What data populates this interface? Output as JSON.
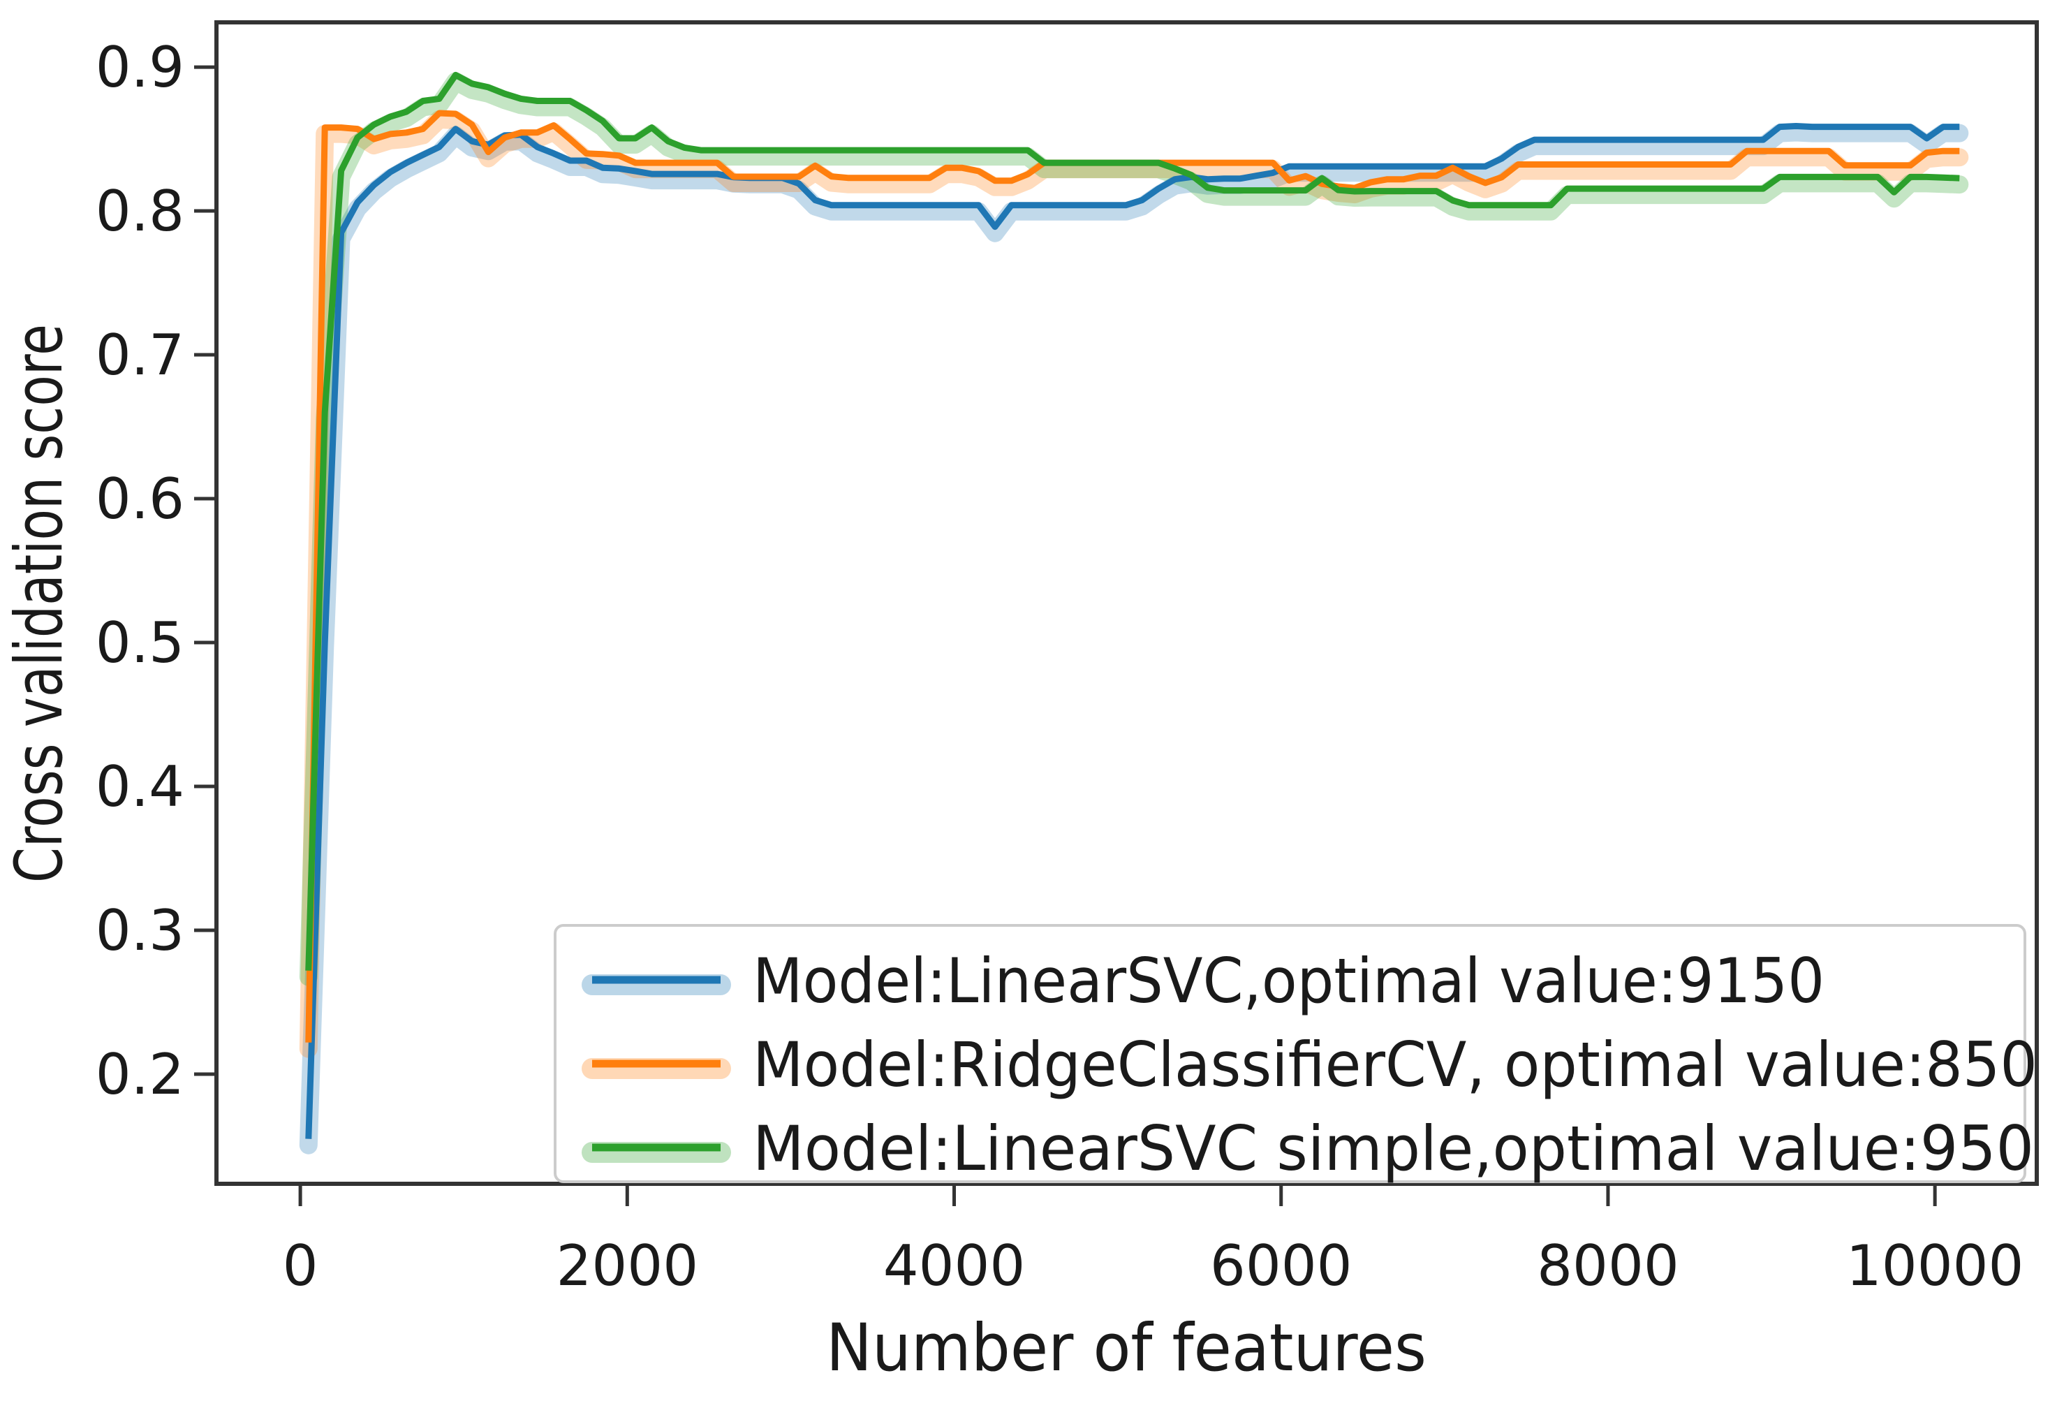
{
  "figure": {
    "background": "#ffffff"
  },
  "chart_data": {
    "type": "line",
    "title": "",
    "xlabel": "Number of features",
    "ylabel": "Cross validation score",
    "grid": false,
    "legend_position": "lower center-right, inside axes",
    "xlim": [
      -513,
      10623
    ],
    "ylim": [
      0.1238,
      0.9311
    ],
    "xticks": [
      0,
      2000,
      4000,
      6000,
      8000,
      10000
    ],
    "yticks": [
      0.2,
      0.3,
      0.4,
      0.5,
      0.6,
      0.7,
      0.8,
      0.9
    ],
    "x": {
      "start": 50,
      "step": 100,
      "end": 10150
    },
    "series": [
      {
        "name": "LinearSVC",
        "label": "Model:LinearSVC,optimal value:9150",
        "color": "#1f77b4",
        "optimal_value": 9150,
        "values": [
          0.155,
          0.5,
          0.785,
          0.806,
          0.818,
          0.827,
          0.8335,
          0.839,
          0.8445,
          0.857,
          0.8485,
          0.846,
          0.8525,
          0.853,
          0.8445,
          0.84,
          0.835,
          0.835,
          0.83,
          0.8295,
          0.8277,
          0.8257,
          0.8257,
          0.8257,
          0.8257,
          0.8257,
          0.8235,
          0.823,
          0.823,
          0.823,
          0.819,
          0.8075,
          0.804,
          0.804,
          0.804,
          0.804,
          0.804,
          0.804,
          0.804,
          0.804,
          0.804,
          0.804,
          0.789,
          0.804,
          0.804,
          0.804,
          0.804,
          0.804,
          0.804,
          0.804,
          0.804,
          0.8075,
          0.8155,
          0.822,
          0.8236,
          0.822,
          0.8225,
          0.8225,
          0.8245,
          0.8265,
          0.831,
          0.831,
          0.831,
          0.831,
          0.831,
          0.831,
          0.831,
          0.831,
          0.831,
          0.831,
          0.831,
          0.831,
          0.831,
          0.8365,
          0.8445,
          0.8495,
          0.8495,
          0.8495,
          0.8495,
          0.8495,
          0.8495,
          0.8495,
          0.8495,
          0.8495,
          0.8495,
          0.8495,
          0.8495,
          0.8495,
          0.8495,
          0.8495,
          0.8585,
          0.859,
          0.8585,
          0.8585,
          0.8585,
          0.8585,
          0.8585,
          0.8585,
          0.8585,
          0.8505,
          0.8585,
          0.8585
        ]
      },
      {
        "name": "RidgeClassifierCV",
        "label": "Model:RidgeClassifierCV, optimal value:850",
        "color": "#ff7f0e",
        "optimal_value": 850,
        "values": [
          0.222,
          0.858,
          0.858,
          0.857,
          0.85,
          0.8535,
          0.8545,
          0.857,
          0.868,
          0.8675,
          0.86,
          0.841,
          0.851,
          0.8545,
          0.8545,
          0.8595,
          0.85,
          0.84,
          0.8395,
          0.8385,
          0.8335,
          0.8335,
          0.8335,
          0.8335,
          0.8335,
          0.8335,
          0.8238,
          0.8238,
          0.8238,
          0.8238,
          0.8238,
          0.8315,
          0.824,
          0.823,
          0.823,
          0.823,
          0.823,
          0.823,
          0.823,
          0.83,
          0.83,
          0.8277,
          0.821,
          0.821,
          0.8255,
          0.8335,
          0.8335,
          0.8335,
          0.8335,
          0.8335,
          0.8335,
          0.8335,
          0.8335,
          0.8335,
          0.8335,
          0.8335,
          0.8335,
          0.8335,
          0.8335,
          0.8335,
          0.8212,
          0.8242,
          0.8188,
          0.817,
          0.816,
          0.82,
          0.822,
          0.822,
          0.8245,
          0.8245,
          0.83,
          0.824,
          0.8195,
          0.8235,
          0.8323,
          0.8323,
          0.8323,
          0.8323,
          0.8323,
          0.8323,
          0.8323,
          0.8323,
          0.8323,
          0.8323,
          0.8323,
          0.8323,
          0.8323,
          0.8323,
          0.8417,
          0.8417,
          0.8417,
          0.8417,
          0.8417,
          0.8417,
          0.8317,
          0.8317,
          0.8317,
          0.8317,
          0.8317,
          0.8405,
          0.8417,
          0.8417
        ]
      },
      {
        "name": "LinearSVC simple",
        "label": "Model:LinearSVC simple,optimal value:950",
        "color": "#2ca02c",
        "optimal_value": 950,
        "values": [
          0.272,
          0.66,
          0.828,
          0.851,
          0.86,
          0.8655,
          0.869,
          0.8765,
          0.878,
          0.8945,
          0.8885,
          0.886,
          0.8815,
          0.878,
          0.8765,
          0.8765,
          0.8765,
          0.87,
          0.8625,
          0.8505,
          0.8505,
          0.858,
          0.8485,
          0.844,
          0.8422,
          0.8422,
          0.8422,
          0.8422,
          0.8422,
          0.8422,
          0.8422,
          0.8422,
          0.8422,
          0.8422,
          0.8422,
          0.8422,
          0.8422,
          0.8422,
          0.8422,
          0.8422,
          0.8422,
          0.8422,
          0.8422,
          0.8422,
          0.8422,
          0.8335,
          0.8335,
          0.8335,
          0.8335,
          0.8335,
          0.8335,
          0.8335,
          0.8335,
          0.8295,
          0.825,
          0.8162,
          0.8143,
          0.8143,
          0.8143,
          0.8143,
          0.8143,
          0.8143,
          0.8228,
          0.8145,
          0.8136,
          0.8138,
          0.8138,
          0.8138,
          0.8138,
          0.8138,
          0.8073,
          0.804,
          0.804,
          0.804,
          0.804,
          0.804,
          0.804,
          0.8155,
          0.8155,
          0.8155,
          0.8155,
          0.8155,
          0.8155,
          0.8155,
          0.8155,
          0.8155,
          0.8155,
          0.8155,
          0.8155,
          0.8155,
          0.8236,
          0.8236,
          0.8236,
          0.8236,
          0.8236,
          0.8236,
          0.8236,
          0.813,
          0.8236,
          0.8236,
          0.8232,
          0.8228
        ]
      }
    ]
  },
  "legend": {
    "border_color": "#cccccc",
    "background": "#ffffff",
    "entries": [
      {
        "label": "Model:LinearSVC,optimal value:9150",
        "color": "#1f77b4",
        "text_length": 1535
      },
      {
        "label": "Model:RidgeClassifierCV, optimal value:850",
        "color": "#ff7f0e",
        "text_length": 1840
      },
      {
        "label": "Model:LinearSVC simple,optimal value:950",
        "color": "#2ca02c",
        "text_length": 1835
      }
    ]
  },
  "axis_style": {
    "spine_color": "#333333",
    "tick_color": "#333333",
    "text_color": "#1a1a1a"
  }
}
